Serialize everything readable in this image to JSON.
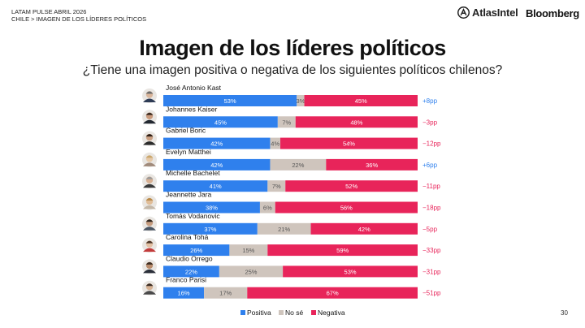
{
  "header": {
    "line1": "LATAM PULSE ABRIL 2026",
    "line2": "CHILE > IMAGEN DE LOS LÍDERES POLÍTICOS"
  },
  "logos": {
    "atlas": "AtlasIntel",
    "bloomberg": "Bloomberg"
  },
  "page_number": "30",
  "colors": {
    "positive": "#2f80ed",
    "neutral": "#cfc5bd",
    "negative": "#e8245a",
    "net_positive": "#2f80ed",
    "net_negative": "#e8245a"
  },
  "chart_data": {
    "type": "bar",
    "orientation": "horizontal",
    "stacked": true,
    "title": "Imagen de los líderes políticos",
    "subtitle": "¿Tiene una imagen positiva o negativa de los siguientes políticos chilenos?",
    "xlim": [
      0,
      100
    ],
    "categories": [
      "José Antonio Kast",
      "Johannes Kaiser",
      "Gabriel Boric",
      "Evelyn Matthei",
      "Michelle Bachelet",
      "Jeannette Jara",
      "Tomás Vodanovic",
      "Carolina Tohá",
      "Claudio Orrego",
      "Franco Parisi"
    ],
    "series": [
      {
        "name": "Positiva",
        "values": [
          53,
          45,
          42,
          42,
          41,
          38,
          37,
          26,
          22,
          16
        ],
        "labels": [
          "53%",
          "45%",
          "42%",
          "42%",
          "41%",
          "38%",
          "37%",
          "26%",
          "22%",
          "16%"
        ]
      },
      {
        "name": "No sé",
        "values": [
          3,
          7,
          4,
          22,
          7,
          6,
          21,
          15,
          25,
          17
        ],
        "labels": [
          "3%",
          "7%",
          "4%",
          "22%",
          "7%",
          "6%",
          "21%",
          "15%",
          "25%",
          "17%"
        ]
      },
      {
        "name": "Negativa",
        "values": [
          45,
          48,
          54,
          36,
          52,
          56,
          42,
          59,
          53,
          67
        ],
        "labels": [
          "45%",
          "48%",
          "54%",
          "36%",
          "52%",
          "56%",
          "42%",
          "59%",
          "53%",
          "67%"
        ]
      }
    ],
    "net": [
      "+8pp",
      "−3pp",
      "−12pp",
      "+6pp",
      "−11pp",
      "−18pp",
      "−5pp",
      "−33pp",
      "−31pp",
      "−51pp"
    ],
    "net_values": [
      8,
      -3,
      -12,
      6,
      -11,
      -18,
      -5,
      -33,
      -31,
      -51
    ],
    "legend": [
      "Positiva",
      "No sé",
      "Negativa"
    ],
    "legend_position": "bottom"
  }
}
